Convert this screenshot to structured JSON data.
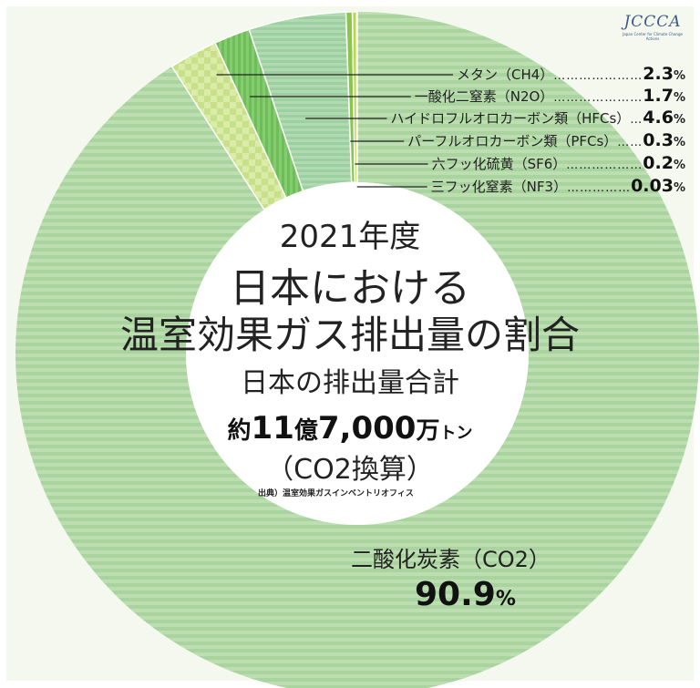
{
  "logo": {
    "text": "JCCCA",
    "subtitle": "Japan Center for Climate Change Actions"
  },
  "title": {
    "year": "2021年度",
    "line1": "日本における",
    "line2": "温室効果ガス排出量の割合"
  },
  "total": {
    "label": "日本の排出量合計",
    "prefix": "約",
    "n1": "11",
    "w1": "億",
    "n2": "7,000",
    "w2": "万",
    "unit": "トン",
    "note": "（CO2換算）",
    "source": "出典）温室効果ガスインベントリオフィス"
  },
  "main_label": {
    "name": "二酸化炭素（CO2）",
    "value": "90.9",
    "unit": "%"
  },
  "chart_data": {
    "type": "pie",
    "style": "donut",
    "unit": "%",
    "slices": [
      {
        "label": "二酸化炭素（CO2）",
        "value": 90.9,
        "color": "#a9d49f"
      },
      {
        "label": "メタン（CH4）",
        "value": 2.3,
        "color": "#c8e08a"
      },
      {
        "label": "一酸化二窒素（N2O）",
        "value": 1.7,
        "color": "#6cbf58"
      },
      {
        "label": "ハイドロフルオロカーボン類（HFCs）",
        "value": 4.6,
        "color": "#9dd0a0"
      },
      {
        "label": "パーフルオロカーボン類（PFCs）",
        "value": 0.3,
        "color": "#8ac64a"
      },
      {
        "label": "六フッ化硫黄（SF6）",
        "value": 0.2,
        "color": "#b8d848"
      },
      {
        "label": "三フッ化窒素（NF3）",
        "value": 0.03,
        "color": "#4fa84a"
      }
    ]
  },
  "legend_rows": [
    {
      "name": "メタン（CH4）",
      "dots": "…………………",
      "value": "2.3",
      "unit": "%"
    },
    {
      "name": "一酸化二窒素（N2O）",
      "dots": "…………………",
      "value": "1.7",
      "unit": "%"
    },
    {
      "name": "ハイドロフルオロカーボン類（HFCs）",
      "dots": "…",
      "value": "4.6",
      "unit": "%"
    },
    {
      "name": "パーフルオロカーボン類（PFCs）",
      "dots": "……",
      "value": "0.3",
      "unit": "%"
    },
    {
      "name": "六フッ化硫黄（SF6）",
      "dots": "………………",
      "value": "0.2",
      "unit": "%"
    },
    {
      "name": "三フッ化窒素（NF3）",
      "dots": "……………",
      "value": "0.03",
      "unit": "%"
    }
  ]
}
